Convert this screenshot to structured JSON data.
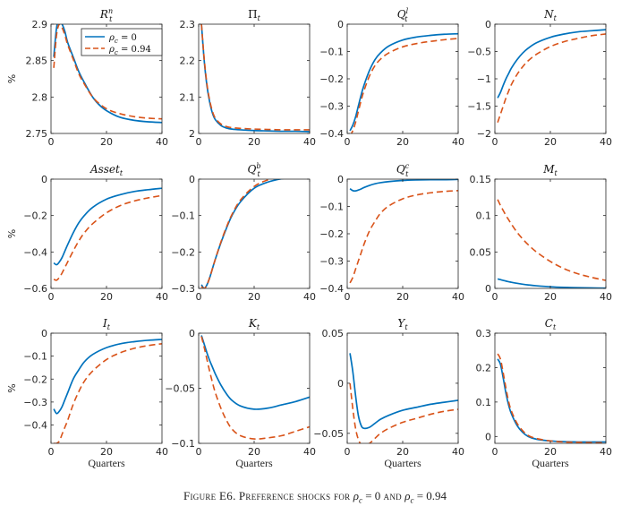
{
  "caption": {
    "label": "Figure E6.",
    "text": "Preference shocks for",
    "math1": "ρc = 0",
    "and": "and",
    "math2": "ρc = 0.94"
  },
  "colors": {
    "series1": "#0072bd",
    "series2": "#d95319",
    "axis": "#262626"
  },
  "chart_data": [
    {
      "type": "line",
      "title": "Rnt",
      "ylabel": "%",
      "xlabel": "",
      "xlim": [
        0,
        40
      ],
      "ylim": [
        2.75,
        2.9
      ],
      "xticks": [
        0,
        20,
        40
      ],
      "yticks": [
        2.75,
        2.8,
        2.85,
        2.9
      ],
      "legend": {
        "position": "top-left",
        "entries": [
          "ρc = 0",
          "ρc = 0.94"
        ]
      },
      "x": [
        1,
        2,
        3,
        4,
        5,
        6,
        8,
        10,
        12,
        15,
        18,
        21,
        25,
        30,
        35,
        40
      ],
      "series": [
        {
          "name": "ρc = 0",
          "values": [
            2.855,
            2.895,
            2.905,
            2.9,
            2.89,
            2.875,
            2.855,
            2.835,
            2.82,
            2.8,
            2.787,
            2.779,
            2.772,
            2.768,
            2.766,
            2.765
          ]
        },
        {
          "name": "ρc = 0.94",
          "values": [
            2.84,
            2.885,
            2.9,
            2.895,
            2.885,
            2.872,
            2.852,
            2.832,
            2.818,
            2.8,
            2.789,
            2.782,
            2.777,
            2.773,
            2.771,
            2.77
          ]
        }
      ]
    },
    {
      "type": "line",
      "title": "Πt",
      "ylabel": "",
      "xlabel": "",
      "xlim": [
        0,
        40
      ],
      "ylim": [
        2,
        2.3
      ],
      "xticks": [
        0,
        20,
        40
      ],
      "yticks": [
        2,
        2.1,
        2.2,
        2.3
      ],
      "x": [
        1,
        2,
        3,
        4,
        5,
        6,
        8,
        10,
        12,
        15,
        20,
        25,
        30,
        35,
        40
      ],
      "series": [
        {
          "name": "ρc = 0",
          "values": [
            2.3,
            2.2,
            2.13,
            2.085,
            2.055,
            2.038,
            2.022,
            2.015,
            2.012,
            2.01,
            2.008,
            2.007,
            2.006,
            2.006,
            2.005
          ]
        },
        {
          "name": "ρc = 0.94",
          "values": [
            2.3,
            2.205,
            2.135,
            2.09,
            2.06,
            2.042,
            2.026,
            2.019,
            2.016,
            2.014,
            2.012,
            2.011,
            2.01,
            2.01,
            2.01
          ]
        }
      ]
    },
    {
      "type": "line",
      "title": "Qlt",
      "ylabel": "",
      "xlabel": "",
      "xlim": [
        0,
        40
      ],
      "ylim": [
        -0.4,
        0
      ],
      "xticks": [
        0,
        20,
        40
      ],
      "yticks": [
        -0.4,
        -0.3,
        -0.2,
        -0.1,
        0
      ],
      "x": [
        1,
        2,
        3,
        4,
        5,
        6,
        8,
        10,
        12,
        15,
        20,
        25,
        30,
        35,
        40
      ],
      "series": [
        {
          "name": "ρc = 0",
          "values": [
            -0.39,
            -0.37,
            -0.34,
            -0.3,
            -0.26,
            -0.225,
            -0.17,
            -0.13,
            -0.105,
            -0.08,
            -0.058,
            -0.047,
            -0.041,
            -0.037,
            -0.035
          ]
        },
        {
          "name": "ρc = 0.94",
          "values": [
            -0.41,
            -0.39,
            -0.36,
            -0.32,
            -0.28,
            -0.245,
            -0.19,
            -0.152,
            -0.128,
            -0.105,
            -0.083,
            -0.071,
            -0.063,
            -0.057,
            -0.052
          ]
        }
      ]
    },
    {
      "type": "line",
      "title": "Nt",
      "ylabel": "",
      "xlabel": "",
      "xlim": [
        0,
        40
      ],
      "ylim": [
        -2,
        0
      ],
      "xticks": [
        0,
        20,
        40
      ],
      "yticks": [
        -2,
        -1.5,
        -1,
        -0.5,
        0
      ],
      "x": [
        1,
        2,
        3,
        4,
        5,
        6,
        8,
        10,
        12,
        15,
        20,
        25,
        30,
        35,
        40
      ],
      "series": [
        {
          "name": "ρc = 0",
          "values": [
            -1.35,
            -1.25,
            -1.12,
            -1.0,
            -0.9,
            -0.8,
            -0.65,
            -0.53,
            -0.44,
            -0.34,
            -0.24,
            -0.18,
            -0.14,
            -0.12,
            -0.1
          ]
        },
        {
          "name": "ρc = 0.94",
          "values": [
            -1.8,
            -1.65,
            -1.5,
            -1.35,
            -1.22,
            -1.1,
            -0.92,
            -0.78,
            -0.67,
            -0.55,
            -0.41,
            -0.32,
            -0.26,
            -0.21,
            -0.18
          ]
        }
      ]
    },
    {
      "type": "line",
      "title": "Assett",
      "ylabel": "%",
      "xlabel": "",
      "xlim": [
        0,
        40
      ],
      "ylim": [
        -0.6,
        0
      ],
      "xticks": [
        0,
        20,
        40
      ],
      "yticks": [
        -0.6,
        -0.4,
        -0.2,
        0
      ],
      "x": [
        1,
        2,
        3,
        4,
        5,
        6,
        8,
        10,
        12,
        15,
        20,
        25,
        30,
        35,
        40
      ],
      "series": [
        {
          "name": "ρc = 0",
          "values": [
            -0.46,
            -0.47,
            -0.455,
            -0.43,
            -0.395,
            -0.36,
            -0.295,
            -0.24,
            -0.2,
            -0.155,
            -0.11,
            -0.085,
            -0.068,
            -0.058,
            -0.05
          ]
        },
        {
          "name": "ρc = 0.94",
          "values": [
            -0.55,
            -0.555,
            -0.54,
            -0.515,
            -0.485,
            -0.455,
            -0.395,
            -0.34,
            -0.295,
            -0.245,
            -0.185,
            -0.145,
            -0.12,
            -0.103,
            -0.09
          ]
        }
      ]
    },
    {
      "type": "line",
      "title": "Qbt",
      "ylabel": "",
      "xlabel": "",
      "xlim": [
        0,
        40
      ],
      "ylim": [
        -0.3,
        0
      ],
      "xticks": [
        0,
        20,
        40
      ],
      "yticks": [
        -0.3,
        -0.2,
        -0.1,
        0
      ],
      "x": [
        1,
        2,
        3,
        4,
        5,
        6,
        8,
        10,
        12,
        15,
        20,
        25,
        30,
        35,
        40
      ],
      "series": [
        {
          "name": "ρc = 0",
          "values": [
            -0.29,
            -0.3,
            -0.29,
            -0.27,
            -0.245,
            -0.22,
            -0.175,
            -0.135,
            -0.1,
            -0.063,
            -0.025,
            -0.008,
            0.001,
            0.006,
            0.009
          ]
        },
        {
          "name": "ρc = 0.94",
          "values": [
            -0.295,
            -0.3,
            -0.29,
            -0.27,
            -0.245,
            -0.22,
            -0.173,
            -0.132,
            -0.097,
            -0.058,
            -0.02,
            -0.002,
            0.007,
            0.012,
            0.015
          ]
        }
      ]
    },
    {
      "type": "line",
      "title": "Qct",
      "ylabel": "",
      "xlabel": "",
      "xlim": [
        0,
        40
      ],
      "ylim": [
        -0.4,
        0
      ],
      "xticks": [
        0,
        20,
        40
      ],
      "yticks": [
        -0.4,
        -0.3,
        -0.2,
        -0.1,
        0
      ],
      "x": [
        1,
        2,
        3,
        4,
        5,
        6,
        8,
        10,
        12,
        15,
        20,
        25,
        30,
        35,
        40
      ],
      "series": [
        {
          "name": "ρc = 0",
          "values": [
            -0.035,
            -0.042,
            -0.043,
            -0.04,
            -0.036,
            -0.031,
            -0.023,
            -0.017,
            -0.013,
            -0.009,
            -0.005,
            -0.003,
            -0.002,
            -0.002,
            -0.001
          ]
        },
        {
          "name": "ρc = 0.94",
          "values": [
            -0.38,
            -0.36,
            -0.33,
            -0.3,
            -0.27,
            -0.24,
            -0.19,
            -0.155,
            -0.125,
            -0.098,
            -0.072,
            -0.058,
            -0.05,
            -0.045,
            -0.042
          ]
        }
      ]
    },
    {
      "type": "line",
      "title": "Mt",
      "ylabel": "",
      "xlabel": "",
      "xlim": [
        0,
        40
      ],
      "ylim": [
        0,
        0.15
      ],
      "xticks": [
        0,
        20,
        40
      ],
      "yticks": [
        0,
        0.05,
        0.1,
        0.15
      ],
      "x": [
        1,
        2,
        3,
        4,
        5,
        6,
        8,
        10,
        12,
        15,
        20,
        25,
        30,
        35,
        40
      ],
      "series": [
        {
          "name": "ρc = 0",
          "values": [
            0.013,
            0.012,
            0.011,
            0.01,
            0.0092,
            0.0084,
            0.007,
            0.0058,
            0.0048,
            0.0036,
            0.0022,
            0.0014,
            0.0009,
            0.0006,
            0.0004
          ]
        },
        {
          "name": "ρc = 0.94",
          "values": [
            0.122,
            0.114,
            0.107,
            0.1,
            0.094,
            0.088,
            0.077,
            0.068,
            0.06,
            0.05,
            0.037,
            0.027,
            0.02,
            0.015,
            0.011
          ]
        }
      ]
    },
    {
      "type": "line",
      "title": "It",
      "ylabel": "%",
      "xlabel": "Quarters",
      "xlim": [
        0,
        40
      ],
      "ylim": [
        -0.48,
        0
      ],
      "xticks": [
        0,
        20,
        40
      ],
      "yticks": [
        -0.4,
        -0.3,
        -0.2,
        -0.1,
        0
      ],
      "x": [
        1,
        2,
        3,
        4,
        5,
        6,
        8,
        10,
        12,
        15,
        20,
        25,
        30,
        35,
        40
      ],
      "series": [
        {
          "name": "ρc = 0",
          "values": [
            -0.33,
            -0.35,
            -0.34,
            -0.32,
            -0.29,
            -0.26,
            -0.2,
            -0.16,
            -0.125,
            -0.093,
            -0.063,
            -0.046,
            -0.037,
            -0.031,
            -0.027
          ]
        },
        {
          "name": "ρc = 0.94",
          "values": [
            -0.48,
            -0.48,
            -0.47,
            -0.44,
            -0.41,
            -0.38,
            -0.31,
            -0.255,
            -0.21,
            -0.165,
            -0.115,
            -0.085,
            -0.066,
            -0.054,
            -0.046
          ]
        }
      ]
    },
    {
      "type": "line",
      "title": "Kt",
      "ylabel": "",
      "xlabel": "Quarters",
      "xlim": [
        0,
        40
      ],
      "ylim": [
        -0.1,
        0
      ],
      "xticks": [
        0,
        20,
        40
      ],
      "yticks": [
        -0.1,
        -0.05,
        0
      ],
      "x": [
        1,
        2,
        3,
        4,
        5,
        6,
        8,
        10,
        12,
        15,
        20,
        25,
        30,
        35,
        40
      ],
      "series": [
        {
          "name": "ρc = 0",
          "values": [
            -0.002,
            -0.01,
            -0.018,
            -0.025,
            -0.031,
            -0.037,
            -0.047,
            -0.055,
            -0.061,
            -0.066,
            -0.069,
            -0.068,
            -0.065,
            -0.062,
            -0.058
          ]
        },
        {
          "name": "ρc = 0.94",
          "values": [
            -0.003,
            -0.013,
            -0.024,
            -0.035,
            -0.045,
            -0.054,
            -0.068,
            -0.079,
            -0.087,
            -0.093,
            -0.096,
            -0.095,
            -0.093,
            -0.089,
            -0.085
          ]
        }
      ]
    },
    {
      "type": "line",
      "title": "Yt",
      "ylabel": "",
      "xlabel": "Quarters",
      "xlim": [
        0,
        40
      ],
      "ylim": [
        -0.06,
        0.05
      ],
      "xticks": [
        0,
        20,
        40
      ],
      "yticks": [
        -0.05,
        0,
        0.05
      ],
      "x": [
        1,
        2,
        3,
        4,
        5,
        6,
        8,
        10,
        12,
        15,
        20,
        25,
        30,
        35,
        40
      ],
      "series": [
        {
          "name": "ρc = 0",
          "values": [
            0.03,
            0.012,
            -0.012,
            -0.032,
            -0.042,
            -0.045,
            -0.044,
            -0.04,
            -0.036,
            -0.032,
            -0.027,
            -0.024,
            -0.021,
            -0.019,
            -0.017
          ]
        },
        {
          "name": "ρc = 0.94",
          "values": [
            0.0,
            -0.025,
            -0.045,
            -0.056,
            -0.061,
            -0.062,
            -0.06,
            -0.055,
            -0.05,
            -0.045,
            -0.039,
            -0.035,
            -0.031,
            -0.028,
            -0.026
          ]
        }
      ]
    },
    {
      "type": "line",
      "title": "Ct",
      "ylabel": "",
      "xlabel": "Quarters",
      "xlim": [
        0,
        40
      ],
      "ylim": [
        -0.02,
        0.3
      ],
      "xticks": [
        0,
        20,
        40
      ],
      "yticks": [
        0,
        0.1,
        0.2,
        0.3
      ],
      "x": [
        1,
        2,
        3,
        4,
        5,
        6,
        8,
        10,
        12,
        15,
        20,
        25,
        30,
        35,
        40
      ],
      "series": [
        {
          "name": "ρc = 0",
          "values": [
            0.225,
            0.21,
            0.17,
            0.125,
            0.09,
            0.065,
            0.032,
            0.012,
            0.0,
            -0.008,
            -0.013,
            -0.015,
            -0.016,
            -0.016,
            -0.016
          ]
        },
        {
          "name": "ρc = 0.94",
          "values": [
            0.24,
            0.225,
            0.185,
            0.14,
            0.1,
            0.073,
            0.038,
            0.017,
            0.003,
            -0.006,
            -0.013,
            -0.016,
            -0.017,
            -0.018,
            -0.018
          ]
        }
      ]
    }
  ]
}
